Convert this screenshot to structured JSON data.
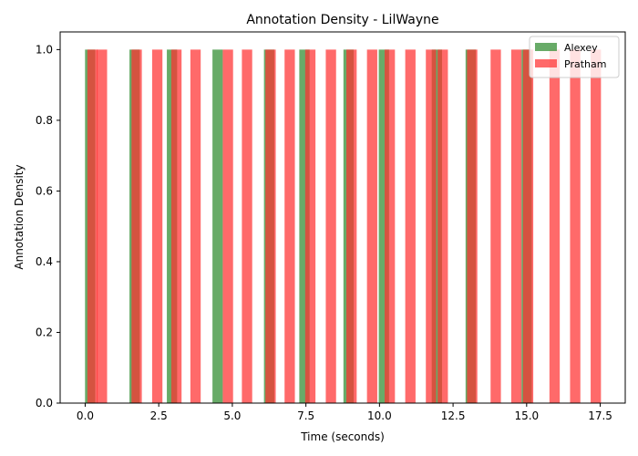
{
  "chart_data": {
    "type": "bar",
    "title": "Annotation Density - LilWayne",
    "xlabel": "Time (seconds)",
    "ylabel": "Annotation Density",
    "xlim": [
      -0.85,
      18.35
    ],
    "ylim": [
      0,
      1.05
    ],
    "xticks": [
      0.0,
      2.5,
      5.0,
      7.5,
      10.0,
      12.5,
      15.0,
      17.5
    ],
    "xtick_labels": [
      "0.0",
      "2.5",
      "5.0",
      "7.5",
      "10.0",
      "12.5",
      "15.0",
      "17.5"
    ],
    "yticks": [
      0.0,
      0.2,
      0.4,
      0.6,
      0.8,
      1.0
    ],
    "ytick_labels": [
      "0.0",
      "0.2",
      "0.4",
      "0.6",
      "0.8",
      "1.0"
    ],
    "grid": false,
    "legend_position": "top-right",
    "bar_width": 0.35,
    "series": [
      {
        "name": "Alexey",
        "color": "#2e8b2e",
        "opacity": 0.72,
        "x": [
          0.17,
          1.68,
          2.95,
          4.5,
          6.25,
          7.45,
          8.95,
          10.15,
          11.95,
          13.1,
          15.0
        ],
        "values": [
          1,
          1,
          1,
          1,
          1,
          1,
          1,
          1,
          1,
          1,
          1
        ]
      },
      {
        "name": "Pratham",
        "color": "#ff3030",
        "opacity": 0.72,
        "x": [
          0.25,
          0.57,
          1.75,
          2.45,
          3.1,
          3.75,
          4.85,
          5.5,
          6.3,
          6.95,
          7.65,
          8.35,
          9.05,
          9.75,
          10.35,
          11.05,
          11.75,
          12.15,
          13.15,
          13.95,
          14.65,
          15.05,
          15.95,
          16.65,
          17.35
        ],
        "values": [
          1,
          1,
          1,
          1,
          1,
          1,
          1,
          1,
          1,
          1,
          1,
          1,
          1,
          1,
          1,
          1,
          1,
          1,
          1,
          1,
          1,
          1,
          1,
          1,
          1
        ]
      }
    ]
  }
}
